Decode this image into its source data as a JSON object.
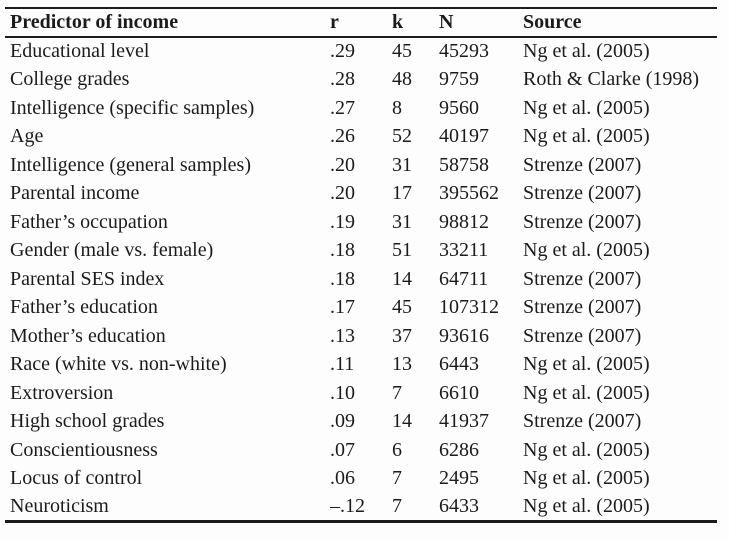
{
  "table": {
    "columns": [
      "Predictor of income",
      "r",
      "k",
      "N",
      "Source"
    ],
    "rows": [
      {
        "predictor": "Educational level",
        "r": ".29",
        "k": "45",
        "N": "45293",
        "source": "Ng et al. (2005)"
      },
      {
        "predictor": "College grades",
        "r": ".28",
        "k": "48",
        "N": "9759",
        "source": "Roth & Clarke (1998)"
      },
      {
        "predictor": "Intelligence (specific samples)",
        "r": ".27",
        "k": "8",
        "N": "9560",
        "source": "Ng et al. (2005)"
      },
      {
        "predictor": "Age",
        "r": ".26",
        "k": "52",
        "N": "40197",
        "source": "Ng et al. (2005)"
      },
      {
        "predictor": "Intelligence (general samples)",
        "r": ".20",
        "k": "31",
        "N": "58758",
        "source": "Strenze (2007)"
      },
      {
        "predictor": "Parental income",
        "r": ".20",
        "k": "17",
        "N": "395562",
        "source": "Strenze (2007)"
      },
      {
        "predictor": "Father’s occupation",
        "r": ".19",
        "k": "31",
        "N": "98812",
        "source": "Strenze (2007)"
      },
      {
        "predictor": "Gender (male vs. female)",
        "r": ".18",
        "k": "51",
        "N": "33211",
        "source": "Ng et al. (2005)"
      },
      {
        "predictor": "Parental SES index",
        "r": ".18",
        "k": "14",
        "N": "64711",
        "source": "Strenze (2007)"
      },
      {
        "predictor": "Father’s education",
        "r": ".17",
        "k": "45",
        "N": "107312",
        "source": "Strenze (2007)"
      },
      {
        "predictor": "Mother’s education",
        "r": ".13",
        "k": "37",
        "N": "93616",
        "source": "Strenze (2007)"
      },
      {
        "predictor": "Race (white vs. non-white)",
        "r": ".11",
        "k": "13",
        "N": "6443",
        "source": "Ng et al. (2005)"
      },
      {
        "predictor": "Extroversion",
        "r": ".10",
        "k": "7",
        "N": "6610",
        "source": "Ng et al. (2005)"
      },
      {
        "predictor": "High school grades",
        "r": ".09",
        "k": "14",
        "N": "41937",
        "source": "Strenze (2007)"
      },
      {
        "predictor": "Conscientiousness",
        "r": ".07",
        "k": "6",
        "N": "6286",
        "source": "Ng et al. (2005)"
      },
      {
        "predictor": "Locus of control",
        "r": ".06",
        "k": "7",
        "N": "2495",
        "source": "Ng et al. (2005)"
      },
      {
        "predictor": "Neuroticism",
        "r": "–.12",
        "k": "7",
        "N": "6433",
        "source": "Ng et al. (2005)"
      }
    ]
  }
}
